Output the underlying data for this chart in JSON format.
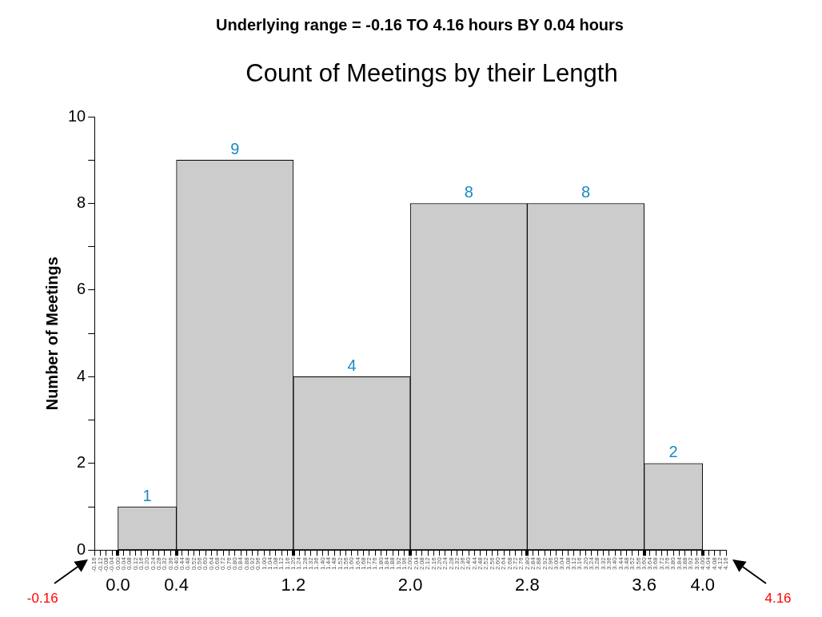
{
  "chart_data": {
    "type": "histogram",
    "subtitle": "Underlying range = -0.16 TO 4.16 hours BY 0.04 hours",
    "title": "Count of Meetings by their Length",
    "ylabel": "Number of Meetings",
    "bins": [
      0.0,
      0.4,
      1.2,
      2.0,
      2.8,
      3.6,
      4.0
    ],
    "values": [
      1,
      9,
      4,
      8,
      8,
      2
    ],
    "color": "#cccccc",
    "data_labels": true,
    "grid": false,
    "legend": false,
    "xlim": [
      -0.16,
      4.16
    ],
    "xticks": [
      {
        "value": 0,
        "label": "0.0"
      },
      {
        "value": 0.4,
        "label": "0.4"
      },
      {
        "value": 1.2,
        "label": "1.2"
      },
      {
        "value": 2.0,
        "label": "2.0"
      },
      {
        "value": 2.8,
        "label": "2.8"
      },
      {
        "value": 3.6,
        "label": "3.6"
      },
      {
        "value": 4.0,
        "label": "4.0"
      }
    ],
    "x2lim": [
      -0.16,
      4.16
    ],
    "x2ticks": [
      {
        "value": -0.16,
        "label": "-0.16"
      },
      {
        "value": -0.12,
        "label": "-0.12"
      },
      {
        "value": -0.08,
        "label": "-0.08"
      },
      {
        "value": -0.04,
        "label": "-0.04"
      },
      {
        "value": 0,
        "label": "0.00"
      },
      {
        "value": 0.04,
        "label": "0.04"
      },
      {
        "value": 0.08,
        "label": "0.08"
      },
      {
        "value": 0.12,
        "label": "0.12"
      },
      {
        "value": 0.16,
        "label": "0.16"
      },
      {
        "value": 0.2,
        "label": "0.20"
      },
      {
        "value": 0.24,
        "label": "0.24"
      },
      {
        "value": 0.28,
        "label": "0.28"
      },
      {
        "value": 0.32,
        "label": "0.32"
      },
      {
        "value": 0.36,
        "label": "0.36"
      },
      {
        "value": 0.4,
        "label": "0.40"
      },
      {
        "value": 0.44,
        "label": "0.44"
      },
      {
        "value": 0.48,
        "label": "0.48"
      },
      {
        "value": 0.52,
        "label": "0.52"
      },
      {
        "value": 0.56,
        "label": "0.56"
      },
      {
        "value": 0.6,
        "label": "0.60"
      },
      {
        "value": 0.64,
        "label": "0.64"
      },
      {
        "value": 0.68,
        "label": "0.68"
      },
      {
        "value": 0.72,
        "label": "0.72"
      },
      {
        "value": 0.76,
        "label": "0.76"
      },
      {
        "value": 0.8,
        "label": "0.80"
      },
      {
        "value": 0.84,
        "label": "0.84"
      },
      {
        "value": 0.88,
        "label": "0.88"
      },
      {
        "value": 0.92,
        "label": "0.92"
      },
      {
        "value": 0.96,
        "label": "0.96"
      },
      {
        "value": 1.0,
        "label": "1.00"
      },
      {
        "value": 1.04,
        "label": "1.04"
      },
      {
        "value": 1.08,
        "label": "1.08"
      },
      {
        "value": 1.12,
        "label": "1.12"
      },
      {
        "value": 1.16,
        "label": "1.16"
      },
      {
        "value": 1.2,
        "label": "1.20"
      },
      {
        "value": 1.24,
        "label": "1.24"
      },
      {
        "value": 1.28,
        "label": "1.28"
      },
      {
        "value": 1.32,
        "label": "1.32"
      },
      {
        "value": 1.36,
        "label": "1.36"
      },
      {
        "value": 1.4,
        "label": "1.40"
      },
      {
        "value": 1.44,
        "label": "1.44"
      },
      {
        "value": 1.48,
        "label": "1.48"
      },
      {
        "value": 1.52,
        "label": "1.52"
      },
      {
        "value": 1.56,
        "label": "1.56"
      },
      {
        "value": 1.6,
        "label": "1.60"
      },
      {
        "value": 1.64,
        "label": "1.64"
      },
      {
        "value": 1.68,
        "label": "1.68"
      },
      {
        "value": 1.72,
        "label": "1.72"
      },
      {
        "value": 1.76,
        "label": "1.76"
      },
      {
        "value": 1.8,
        "label": "1.80"
      },
      {
        "value": 1.84,
        "label": "1.84"
      },
      {
        "value": 1.88,
        "label": "1.88"
      },
      {
        "value": 1.92,
        "label": "1.92"
      },
      {
        "value": 1.96,
        "label": "1.96"
      },
      {
        "value": 2.0,
        "label": "2.00"
      },
      {
        "value": 2.04,
        "label": "2.04"
      },
      {
        "value": 2.08,
        "label": "2.08"
      },
      {
        "value": 2.12,
        "label": "2.12"
      },
      {
        "value": 2.16,
        "label": "2.16"
      },
      {
        "value": 2.2,
        "label": "2.20"
      },
      {
        "value": 2.24,
        "label": "2.24"
      },
      {
        "value": 2.28,
        "label": "2.28"
      },
      {
        "value": 2.32,
        "label": "2.32"
      },
      {
        "value": 2.36,
        "label": "2.36"
      },
      {
        "value": 2.4,
        "label": "2.40"
      },
      {
        "value": 2.44,
        "label": "2.44"
      },
      {
        "value": 2.48,
        "label": "2.48"
      },
      {
        "value": 2.52,
        "label": "2.52"
      },
      {
        "value": 2.56,
        "label": "2.56"
      },
      {
        "value": 2.6,
        "label": "2.60"
      },
      {
        "value": 2.64,
        "label": "2.64"
      },
      {
        "value": 2.68,
        "label": "2.68"
      },
      {
        "value": 2.72,
        "label": "2.72"
      },
      {
        "value": 2.76,
        "label": "2.76"
      },
      {
        "value": 2.8,
        "label": "2.80"
      },
      {
        "value": 2.84,
        "label": "2.84"
      },
      {
        "value": 2.88,
        "label": "2.88"
      },
      {
        "value": 2.92,
        "label": "2.92"
      },
      {
        "value": 2.96,
        "label": "2.96"
      },
      {
        "value": 3.0,
        "label": "3.00"
      },
      {
        "value": 3.04,
        "label": "3.04"
      },
      {
        "value": 3.08,
        "label": "3.08"
      },
      {
        "value": 3.12,
        "label": "3.12"
      },
      {
        "value": 3.16,
        "label": "3.16"
      },
      {
        "value": 3.2,
        "label": "3.20"
      },
      {
        "value": 3.24,
        "label": "3.24"
      },
      {
        "value": 3.28,
        "label": "3.28"
      },
      {
        "value": 3.32,
        "label": "3.32"
      },
      {
        "value": 3.36,
        "label": "3.36"
      },
      {
        "value": 3.4,
        "label": "3.40"
      },
      {
        "value": 3.44,
        "label": "3.44"
      },
      {
        "value": 3.48,
        "label": "3.48"
      },
      {
        "value": 3.52,
        "label": "3.52"
      },
      {
        "value": 3.56,
        "label": "3.56"
      },
      {
        "value": 3.6,
        "label": "3.60"
      },
      {
        "value": 3.64,
        "label": "3.64"
      },
      {
        "value": 3.68,
        "label": "3.68"
      },
      {
        "value": 3.72,
        "label": "3.72"
      },
      {
        "value": 3.76,
        "label": "3.76"
      },
      {
        "value": 3.8,
        "label": "3.80"
      },
      {
        "value": 3.84,
        "label": "3.84"
      },
      {
        "value": 3.88,
        "label": "3.88"
      },
      {
        "value": 3.92,
        "label": "3.92"
      },
      {
        "value": 3.96,
        "label": "3.96"
      },
      {
        "value": 4.0,
        "label": "4.00"
      },
      {
        "value": 4.04,
        "label": "4.04"
      },
      {
        "value": 4.08,
        "label": "4.08"
      },
      {
        "value": 4.12,
        "label": "4.12"
      },
      {
        "value": 4.16,
        "label": "4.16"
      }
    ],
    "ylim": [
      0,
      10
    ],
    "yticks": [
      0,
      {
        "value": 1,
        "label": null
      },
      2,
      {
        "value": 3,
        "label": null
      },
      4,
      {
        "value": 5,
        "label": null
      },
      6,
      {
        "value": 7,
        "label": null
      },
      8,
      {
        "value": 9,
        "label": null
      },
      10
    ],
    "annotations": [
      "-0.16",
      "4.16"
    ]
  }
}
